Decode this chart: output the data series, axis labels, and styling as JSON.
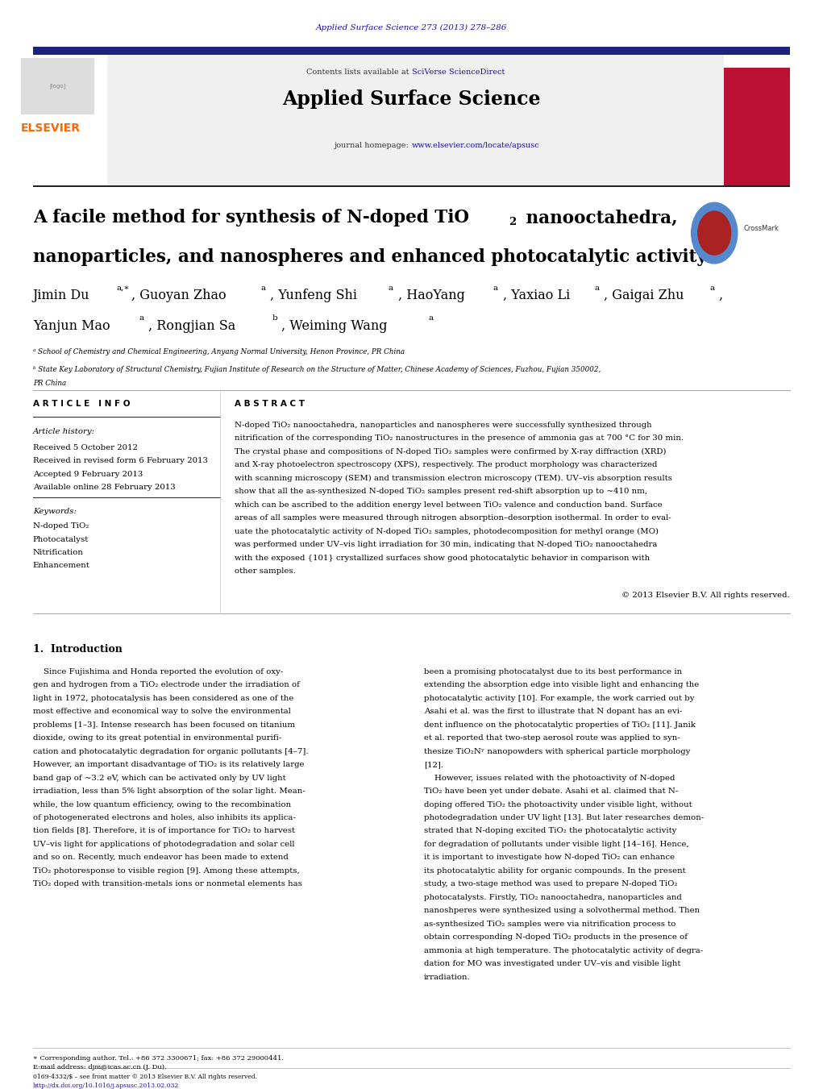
{
  "page_width": 10.21,
  "page_height": 13.51,
  "bg_color": "#ffffff",
  "journal_ref": "Applied Surface Science 273 (2013) 278–286",
  "journal_ref_color": "#1a0dab",
  "header_bg": "#e8e8e8",
  "header_text": "Applied Surface Science",
  "contents_text": "Contents lists available at ",
  "sciverse_text": "SciVerse ScienceDirect",
  "journal_homepage": "journal homepage: ",
  "homepage_url": "www.elsevier.com/locate/apsusc",
  "top_bar_color": "#1a237e",
  "elsevier_orange": "#FF6600",
  "elsevier_text": "ELSEVIER",
  "article_info_header": "A R T I C L E   I N F O",
  "abstract_header": "A B S T R A C T",
  "article_history_label": "Article history:",
  "received1": "Received 5 October 2012",
  "received2": "Received in revised form 6 February 2013",
  "accepted": "Accepted 9 February 2013",
  "available": "Available online 28 February 2013",
  "keywords_label": "Keywords:",
  "kw1": "N-doped TiO₂",
  "kw2": "Photocatalyst",
  "kw3": "Nitrification",
  "kw4": "Enhancement",
  "copyright": "© 2013 Elsevier B.V. All rights reserved.",
  "section1_header": "1.  Introduction",
  "affil_a": "ᵃ School of Chemistry and Chemical Engineering, Anyang Normal University, Henon Province, PR China",
  "affil_b": "ᵇ State Key Laboratory of Structural Chemistry, Fujian Institute of Research on the Structure of Matter, Chinese Academy of Sciences, Fuzhou, Fujian 350002,",
  "affil_b2": "PR China",
  "footer_left1": "0169-4332/$ – see front matter © 2013 Elsevier B.V. All rights reserved.",
  "footer_left2": "http://dx.doi.org/10.1016/j.apsusc.2013.02.032",
  "corr_note": "∗ Corresponding author. Tel.: +86 372 3300671; fax: +86 372 29000441.",
  "email_note": "E-mail address: djm@icas.ac.cn (J. Du)."
}
